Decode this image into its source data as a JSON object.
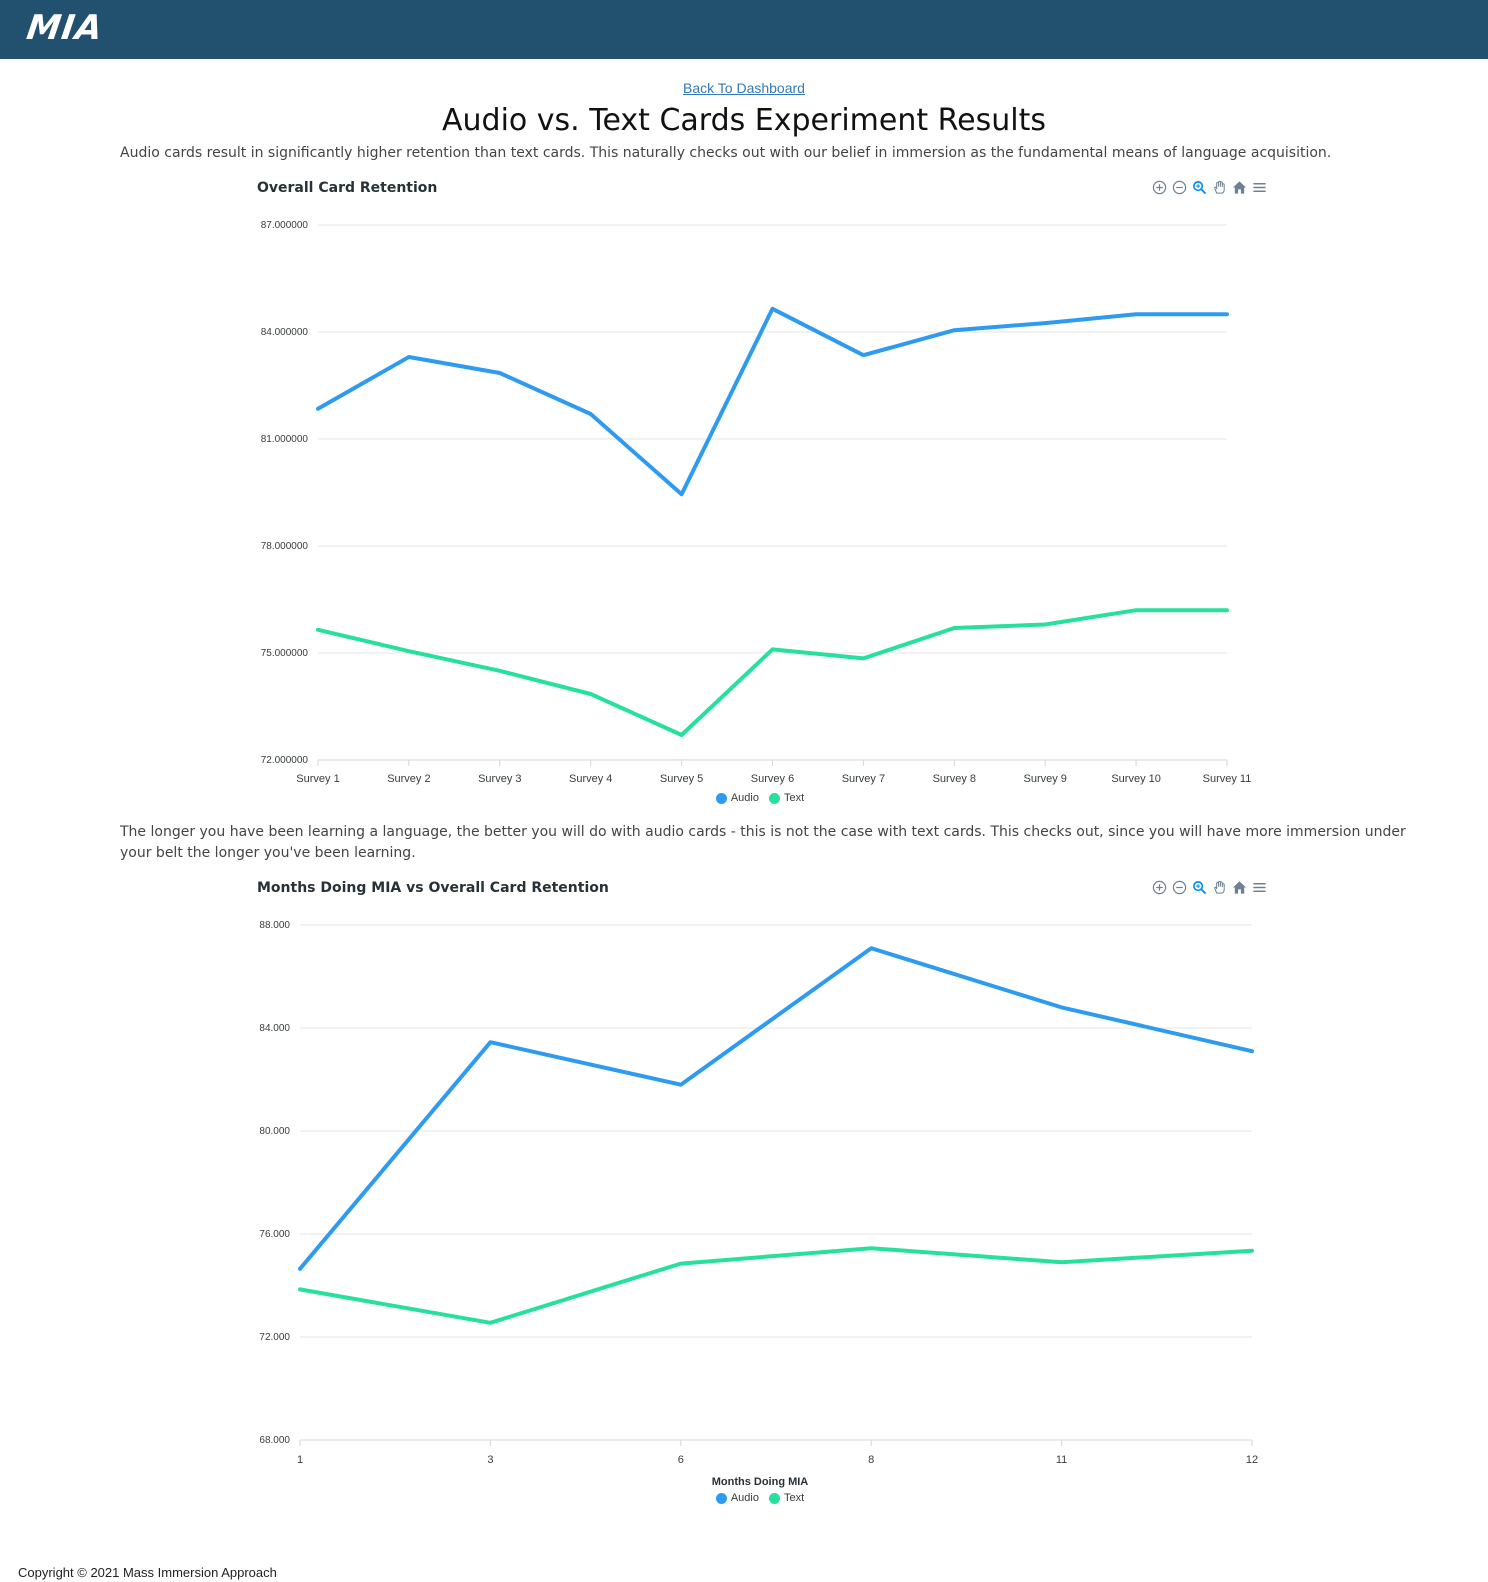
{
  "header": {
    "logo": "MIA"
  },
  "back_link": "Back To Dashboard",
  "page_title": "Audio vs. Text Cards Experiment Results",
  "paragraphs": [
    "Audio cards result in significantly higher retention than text cards. This naturally checks out with our belief in immersion as the fundamental means of language acquisition.",
    "The longer you have been learning a language, the better you will do with audio cards - this is not the case with text cards. This checks out, since you will have more immersion under your belt the longer you've been learning."
  ],
  "toolbar_icons": [
    "zoom-in-icon",
    "zoom-out-icon",
    "selection-zoom-icon",
    "pan-hand-icon",
    "reset-home-icon",
    "menu-icon"
  ],
  "colors": {
    "audio": "#2e9bf0",
    "text": "#27e09b",
    "header": "#22506f"
  },
  "footer": "Copyright © 2021 Mass Immersion Approach",
  "chart_data": [
    {
      "type": "line",
      "title": "Overall Card Retention",
      "xlabel": "",
      "ylabel": "",
      "categories": [
        "Survey 1",
        "Survey 2",
        "Survey 3",
        "Survey 4",
        "Survey 5",
        "Survey 6",
        "Survey 7",
        "Survey 8",
        "Survey 9",
        "Survey 10",
        "Survey 11"
      ],
      "ylim": [
        72,
        87
      ],
      "yticks": [
        "72.000000",
        "75.000000",
        "78.000000",
        "81.000000",
        "84.000000",
        "87.000000"
      ],
      "series": [
        {
          "name": "Audio",
          "values": [
            81.85,
            83.3,
            82.85,
            81.7,
            79.45,
            84.65,
            83.35,
            84.05,
            84.25,
            84.5,
            84.5
          ]
        },
        {
          "name": "Text",
          "values": [
            75.65,
            75.05,
            74.5,
            73.85,
            72.7,
            75.1,
            74.85,
            75.7,
            75.8,
            76.2,
            76.2
          ]
        }
      ],
      "legend": "bottom-center",
      "grid": true
    },
    {
      "type": "line",
      "title": "Months Doing MIA vs Overall Card Retention",
      "xlabel": "Months Doing MIA",
      "ylabel": "",
      "categories": [
        "1",
        "3",
        "6",
        "8",
        "11",
        "12"
      ],
      "ylim": [
        68,
        88
      ],
      "yticks": [
        "68.000",
        "72.000",
        "76.000",
        "80.000",
        "84.000",
        "88.000"
      ],
      "series": [
        {
          "name": "Audio",
          "values": [
            74.65,
            83.45,
            81.8,
            87.1,
            84.8,
            83.1
          ]
        },
        {
          "name": "Text",
          "values": [
            73.85,
            72.55,
            74.85,
            75.45,
            74.9,
            75.35
          ]
        }
      ],
      "legend": "bottom-center",
      "grid": true
    }
  ]
}
